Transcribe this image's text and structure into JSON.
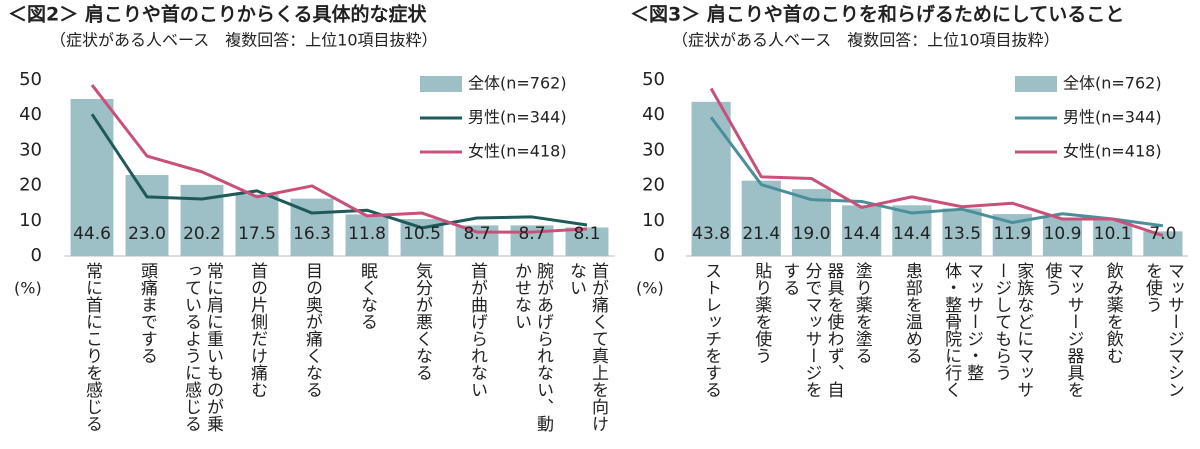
{
  "chart_data": [
    {
      "type": "bar",
      "title": "＜図2＞ 肩こりや首のこりからくる具体的な症状",
      "subtitle": "（症状がある人ベース　複数回答：上位10項目抜粋）",
      "ylabel": "(%)",
      "categories": [
        "常に首にこりを感じる",
        "頭痛までする",
        "常に肩に重いものが乗っているように感じる",
        "首の片側だけ痛む",
        "目の奥が痛くなる",
        "眠くなる",
        "気分が悪くなる",
        "首が曲げられない",
        "腕があげられない、動かせない",
        "首が痛くて真上を向けない"
      ],
      "series": [
        {
          "name": "全体(n=762)",
          "type": "bar",
          "color": "#9dbfc6",
          "values": [
            44.6,
            23.0,
            20.2,
            17.5,
            16.3,
            11.8,
            10.5,
            8.7,
            8.7,
            8.1
          ],
          "value_labels": [
            "44.6",
            "23.0",
            "20.2",
            "17.5",
            "16.3",
            "11.8",
            "10.5",
            "8.7",
            "8.7",
            "8.1"
          ]
        },
        {
          "name": "男性(n=344)",
          "type": "line",
          "color": "#1f5a5a",
          "values": [
            40.3,
            16.8,
            16.2,
            18.5,
            12.2,
            13.0,
            8.0,
            10.8,
            11.1,
            8.8
          ]
        },
        {
          "name": "女性(n=418)",
          "type": "line",
          "color": "#c9507a",
          "values": [
            48.6,
            28.4,
            23.9,
            16.8,
            19.9,
            11.4,
            12.2,
            6.8,
            6.8,
            7.7
          ]
        }
      ],
      "ylim": [
        0,
        50
      ],
      "yticks": [
        0,
        10,
        20,
        30,
        40,
        50
      ]
    },
    {
      "type": "bar",
      "title": "＜図3＞ 肩こりや首のこりを和らげるためにしていること",
      "subtitle": "（症状がある人ベース　複数回答：上位10項目抜粋）",
      "ylabel": "(%)",
      "categories": [
        "ストレッチをする",
        "貼り薬を使う",
        "器具を使わず、自分でマッサージをする",
        "塗り薬を塗る",
        "患部を温める",
        "マッサージ・整体・整骨院に行く",
        "家族などにマッサージしてもらう",
        "マッサージ器具を使う",
        "飲み薬を飲む",
        "マッサージマシンを使う"
      ],
      "series": [
        {
          "name": "全体(n=762)",
          "type": "bar",
          "color": "#9dbfc6",
          "values": [
            43.8,
            21.4,
            19.0,
            14.4,
            14.4,
            13.5,
            11.9,
            10.9,
            10.1,
            7.0
          ],
          "value_labels": [
            "43.8",
            "21.4",
            "19.0",
            "14.4",
            "14.4",
            "13.5",
            "11.9",
            "10.9",
            "10.1",
            "7.0"
          ]
        },
        {
          "name": "男性(n=344)",
          "type": "line",
          "color": "#4a8f9a",
          "values": [
            39.4,
            20.3,
            16.0,
            15.5,
            12.2,
            13.3,
            9.5,
            12.0,
            10.5,
            8.6
          ]
        },
        {
          "name": "女性(n=418)",
          "type": "line",
          "color": "#c9507a",
          "values": [
            47.6,
            22.5,
            22.0,
            13.8,
            16.8,
            14.0,
            15.0,
            10.5,
            10.5,
            5.8
          ]
        }
      ],
      "ylim": [
        0,
        50
      ],
      "yticks": [
        0,
        10,
        20,
        30,
        40,
        50
      ]
    }
  ]
}
